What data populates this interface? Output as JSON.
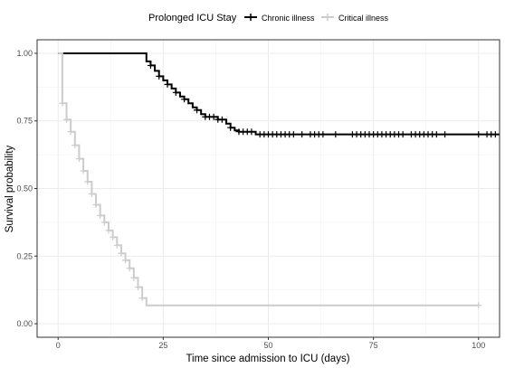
{
  "chart_data": {
    "type": "line",
    "xlabel": "Time since admission to ICU (days)",
    "ylabel": "Survival probability",
    "xlim": [
      -5,
      105
    ],
    "ylim": [
      -0.05,
      1.05
    ],
    "x_ticks": [
      0,
      25,
      50,
      75,
      100
    ],
    "x_tick_labels": [
      "0",
      "25",
      "50",
      "75",
      "100"
    ],
    "y_ticks": [
      0,
      0.25,
      0.5,
      0.75,
      1
    ],
    "y_tick_labels": [
      "0.00",
      "0.25",
      "0.50",
      "0.75",
      "1.00"
    ],
    "grid": true,
    "legend": {
      "title": "Prolonged ICU Stay",
      "position": "top"
    },
    "series": [
      {
        "name": "Chronic illness",
        "color": "#000000",
        "steps": [
          [
            0,
            1.0
          ],
          [
            21,
            0.97
          ],
          [
            22,
            0.955
          ],
          [
            23,
            0.935
          ],
          [
            24,
            0.915
          ],
          [
            25,
            0.9
          ],
          [
            26,
            0.885
          ],
          [
            27,
            0.87
          ],
          [
            28,
            0.855
          ],
          [
            29,
            0.84
          ],
          [
            30,
            0.83
          ],
          [
            31,
            0.815
          ],
          [
            32,
            0.8
          ],
          [
            33,
            0.79
          ],
          [
            34,
            0.775
          ],
          [
            35,
            0.765
          ],
          [
            38,
            0.755
          ],
          [
            40,
            0.74
          ],
          [
            41,
            0.725
          ],
          [
            42,
            0.715
          ],
          [
            43,
            0.71
          ],
          [
            47,
            0.7
          ],
          [
            105,
            0.7
          ]
        ],
        "censor_times": [
          22,
          24,
          26,
          28,
          30,
          33,
          35,
          36,
          37,
          38,
          39,
          41,
          43,
          44,
          45,
          46,
          48,
          49,
          50,
          51,
          52,
          53,
          54,
          55,
          56,
          58,
          60,
          61,
          62,
          63,
          66,
          70,
          71,
          72,
          73,
          74,
          75,
          76,
          77,
          78,
          79,
          80,
          81,
          82,
          84,
          85,
          86,
          87,
          88,
          89,
          90,
          92,
          100,
          102,
          103,
          104
        ]
      },
      {
        "name": "Critical illness",
        "color": "#cccccc",
        "steps": [
          [
            0,
            1.0
          ],
          [
            1,
            0.815
          ],
          [
            2,
            0.755
          ],
          [
            3,
            0.71
          ],
          [
            4,
            0.66
          ],
          [
            5,
            0.61
          ],
          [
            6,
            0.565
          ],
          [
            7,
            0.525
          ],
          [
            8,
            0.48
          ],
          [
            9,
            0.44
          ],
          [
            10,
            0.4
          ],
          [
            11,
            0.375
          ],
          [
            12,
            0.345
          ],
          [
            13,
            0.32
          ],
          [
            14,
            0.29
          ],
          [
            15,
            0.26
          ],
          [
            16,
            0.235
          ],
          [
            17,
            0.205
          ],
          [
            18,
            0.17
          ],
          [
            19,
            0.135
          ],
          [
            20,
            0.095
          ],
          [
            21,
            0.068
          ],
          [
            100,
            0.068
          ]
        ],
        "censor_times": [
          1,
          2,
          3,
          4,
          5,
          6,
          7,
          8,
          9,
          10,
          11,
          12,
          13,
          14,
          15,
          16,
          17,
          18,
          19,
          20,
          100
        ]
      }
    ]
  }
}
